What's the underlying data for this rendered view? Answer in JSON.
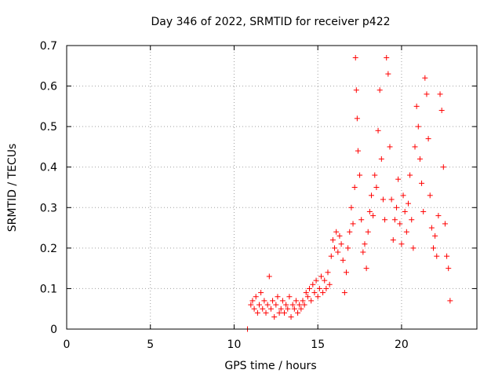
{
  "chart_data": {
    "type": "scatter",
    "title": "Day 346 of 2022, SRMTID for receiver p422",
    "xlabel": "GPS time / hours",
    "ylabel": "SRMTID / TECUs",
    "xlim": [
      0,
      24.5
    ],
    "ylim": [
      0,
      0.7
    ],
    "xticks": [
      0,
      5,
      10,
      15,
      20
    ],
    "yticks": [
      0,
      0.1,
      0.2,
      0.3,
      0.4,
      0.5,
      0.6,
      0.7
    ],
    "xtick_labels": [
      "0",
      "5",
      "10",
      "15",
      "20"
    ],
    "ytick_labels": [
      "0",
      "0.1",
      "0.2",
      "0.3",
      "0.4",
      "0.5",
      "0.6",
      "0.7"
    ],
    "grid": true,
    "marker": "+",
    "color": "#ff0000",
    "series": [
      {
        "name": "SRMTID",
        "points": [
          [
            10.8,
            0.0
          ],
          [
            11.0,
            0.06
          ],
          [
            11.1,
            0.07
          ],
          [
            11.2,
            0.05
          ],
          [
            11.3,
            0.08
          ],
          [
            11.4,
            0.04
          ],
          [
            11.5,
            0.06
          ],
          [
            11.6,
            0.09
          ],
          [
            11.7,
            0.05
          ],
          [
            11.8,
            0.07
          ],
          [
            11.9,
            0.04
          ],
          [
            12.0,
            0.06
          ],
          [
            12.1,
            0.13
          ],
          [
            12.2,
            0.05
          ],
          [
            12.3,
            0.07
          ],
          [
            12.4,
            0.03
          ],
          [
            12.5,
            0.06
          ],
          [
            12.6,
            0.08
          ],
          [
            12.7,
            0.04
          ],
          [
            12.8,
            0.05
          ],
          [
            12.9,
            0.07
          ],
          [
            13.0,
            0.04
          ],
          [
            13.1,
            0.06
          ],
          [
            13.2,
            0.05
          ],
          [
            13.3,
            0.08
          ],
          [
            13.4,
            0.03
          ],
          [
            13.5,
            0.06
          ],
          [
            13.6,
            0.05
          ],
          [
            13.7,
            0.07
          ],
          [
            13.8,
            0.04
          ],
          [
            13.9,
            0.06
          ],
          [
            14.0,
            0.05
          ],
          [
            14.1,
            0.07
          ],
          [
            14.2,
            0.06
          ],
          [
            14.3,
            0.09
          ],
          [
            14.4,
            0.08
          ],
          [
            14.5,
            0.1
          ],
          [
            14.6,
            0.07
          ],
          [
            14.7,
            0.11
          ],
          [
            14.8,
            0.09
          ],
          [
            14.9,
            0.12
          ],
          [
            15.0,
            0.08
          ],
          [
            15.1,
            0.1
          ],
          [
            15.2,
            0.13
          ],
          [
            15.3,
            0.09
          ],
          [
            15.4,
            0.12
          ],
          [
            15.5,
            0.1
          ],
          [
            15.6,
            0.14
          ],
          [
            15.7,
            0.11
          ],
          [
            15.8,
            0.18
          ],
          [
            15.9,
            0.22
          ],
          [
            16.0,
            0.2
          ],
          [
            16.1,
            0.24
          ],
          [
            16.2,
            0.19
          ],
          [
            16.3,
            0.23
          ],
          [
            16.4,
            0.21
          ],
          [
            16.5,
            0.17
          ],
          [
            16.6,
            0.09
          ],
          [
            16.7,
            0.14
          ],
          [
            16.8,
            0.2
          ],
          [
            16.9,
            0.24
          ],
          [
            17.0,
            0.3
          ],
          [
            17.1,
            0.26
          ],
          [
            17.2,
            0.35
          ],
          [
            17.25,
            0.67
          ],
          [
            17.3,
            0.59
          ],
          [
            17.35,
            0.52
          ],
          [
            17.4,
            0.44
          ],
          [
            17.5,
            0.38
          ],
          [
            17.6,
            0.27
          ],
          [
            17.7,
            0.19
          ],
          [
            17.8,
            0.21
          ],
          [
            17.9,
            0.15
          ],
          [
            18.0,
            0.24
          ],
          [
            18.1,
            0.29
          ],
          [
            18.2,
            0.33
          ],
          [
            18.3,
            0.28
          ],
          [
            18.4,
            0.38
          ],
          [
            18.5,
            0.35
          ],
          [
            18.6,
            0.49
          ],
          [
            18.7,
            0.59
          ],
          [
            18.8,
            0.42
          ],
          [
            18.9,
            0.32
          ],
          [
            19.0,
            0.27
          ],
          [
            19.1,
            0.67
          ],
          [
            19.2,
            0.63
          ],
          [
            19.3,
            0.45
          ],
          [
            19.4,
            0.32
          ],
          [
            19.5,
            0.22
          ],
          [
            19.6,
            0.27
          ],
          [
            19.7,
            0.3
          ],
          [
            19.8,
            0.37
          ],
          [
            19.9,
            0.26
          ],
          [
            20.0,
            0.21
          ],
          [
            20.1,
            0.33
          ],
          [
            20.2,
            0.29
          ],
          [
            20.3,
            0.24
          ],
          [
            20.4,
            0.31
          ],
          [
            20.5,
            0.38
          ],
          [
            20.6,
            0.27
          ],
          [
            20.7,
            0.2
          ],
          [
            20.8,
            0.45
          ],
          [
            20.9,
            0.55
          ],
          [
            21.0,
            0.5
          ],
          [
            21.1,
            0.42
          ],
          [
            21.2,
            0.36
          ],
          [
            21.3,
            0.29
          ],
          [
            21.4,
            0.62
          ],
          [
            21.5,
            0.58
          ],
          [
            21.6,
            0.47
          ],
          [
            21.7,
            0.33
          ],
          [
            21.8,
            0.25
          ],
          [
            21.9,
            0.2
          ],
          [
            22.0,
            0.23
          ],
          [
            22.1,
            0.18
          ],
          [
            22.2,
            0.28
          ],
          [
            22.3,
            0.58
          ],
          [
            22.4,
            0.54
          ],
          [
            22.5,
            0.4
          ],
          [
            22.6,
            0.26
          ],
          [
            22.7,
            0.18
          ],
          [
            22.8,
            0.15
          ],
          [
            22.9,
            0.07
          ]
        ]
      }
    ]
  }
}
